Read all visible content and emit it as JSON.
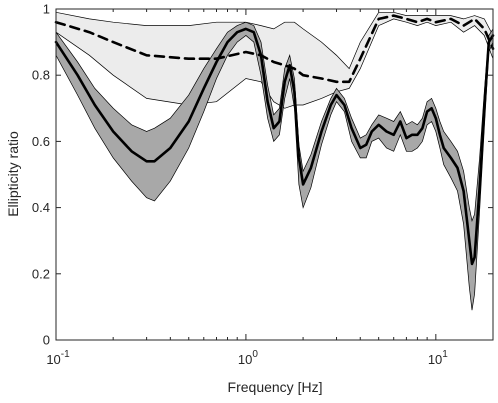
{
  "chart_data": {
    "type": "line",
    "xlabel": "Frequency [Hz]",
    "ylabel": "Ellipticity ratio",
    "xscale": "log",
    "xlim": [
      0.1,
      20
    ],
    "ylim": [
      0,
      1
    ],
    "grid": false,
    "x_ticks": [
      {
        "value": 0.1,
        "base": "10",
        "exp": "-1"
      },
      {
        "value": 1,
        "base": "10",
        "exp": "0"
      },
      {
        "value": 10,
        "base": "10",
        "exp": "1"
      }
    ],
    "y_ticks": [
      0,
      0.2,
      0.4,
      0.6,
      0.8,
      1
    ],
    "y_tick_labels": [
      "0",
      "0.2",
      "0.4",
      "0.6",
      "0.8",
      "1"
    ],
    "colors": {
      "light_band": "#ececec",
      "dark_band": "#a8a8a8",
      "line": "#000000",
      "axis": "#262626"
    },
    "series": [
      {
        "style": "dashed",
        "fill": "light",
        "x": [
          0.1,
          0.15,
          0.2,
          0.3,
          0.5,
          0.7,
          1.0,
          1.2,
          1.4,
          1.6,
          1.8,
          2.0,
          2.5,
          3.0,
          3.5,
          4.0,
          5.0,
          6.0,
          7.0,
          8.0,
          9.0,
          10.0,
          12.0,
          14.0,
          16.0,
          18.0,
          20.0
        ],
        "y": [
          0.96,
          0.93,
          0.9,
          0.86,
          0.85,
          0.85,
          0.87,
          0.86,
          0.84,
          0.83,
          0.82,
          0.8,
          0.79,
          0.78,
          0.78,
          0.85,
          0.97,
          0.98,
          0.97,
          0.96,
          0.97,
          0.96,
          0.97,
          0.95,
          0.97,
          0.94,
          0.88
        ],
        "upper": [
          0.99,
          0.97,
          0.96,
          0.95,
          0.95,
          0.96,
          0.96,
          0.95,
          0.94,
          0.96,
          0.96,
          0.94,
          0.9,
          0.86,
          0.82,
          0.9,
          0.99,
          0.99,
          0.98,
          0.98,
          0.98,
          0.98,
          0.98,
          0.97,
          0.98,
          0.97,
          0.92
        ],
        "lower": [
          0.93,
          0.86,
          0.8,
          0.73,
          0.71,
          0.72,
          0.79,
          0.78,
          0.72,
          0.7,
          0.71,
          0.71,
          0.73,
          0.75,
          0.76,
          0.82,
          0.95,
          0.97,
          0.96,
          0.95,
          0.96,
          0.95,
          0.96,
          0.93,
          0.95,
          0.92,
          0.85
        ]
      },
      {
        "style": "solid",
        "fill": "dark",
        "x": [
          0.1,
          0.13,
          0.16,
          0.2,
          0.25,
          0.3,
          0.33,
          0.4,
          0.5,
          0.6,
          0.7,
          0.8,
          0.9,
          1.0,
          1.1,
          1.2,
          1.3,
          1.4,
          1.5,
          1.6,
          1.7,
          1.8,
          1.9,
          2.0,
          2.2,
          2.5,
          2.8,
          3.0,
          3.3,
          3.6,
          4.0,
          4.3,
          4.6,
          5.0,
          5.5,
          6.0,
          6.5,
          7.0,
          7.5,
          8.0,
          8.5,
          9.0,
          9.5,
          10.0,
          10.5,
          11.0,
          12.0,
          13.0,
          14.0,
          15.0,
          15.5,
          16.0,
          17.0,
          18.0,
          19.0,
          20.0
        ],
        "y": [
          0.9,
          0.8,
          0.71,
          0.63,
          0.57,
          0.54,
          0.54,
          0.58,
          0.66,
          0.76,
          0.84,
          0.9,
          0.93,
          0.94,
          0.93,
          0.86,
          0.72,
          0.64,
          0.66,
          0.78,
          0.83,
          0.75,
          0.55,
          0.47,
          0.52,
          0.63,
          0.71,
          0.74,
          0.71,
          0.64,
          0.58,
          0.59,
          0.63,
          0.65,
          0.63,
          0.62,
          0.66,
          0.61,
          0.62,
          0.62,
          0.64,
          0.69,
          0.7,
          0.67,
          0.62,
          0.58,
          0.55,
          0.52,
          0.45,
          0.3,
          0.23,
          0.25,
          0.46,
          0.7,
          0.9,
          0.92
        ],
        "upper": [
          0.93,
          0.84,
          0.76,
          0.7,
          0.65,
          0.63,
          0.64,
          0.67,
          0.74,
          0.82,
          0.88,
          0.93,
          0.95,
          0.96,
          0.95,
          0.9,
          0.77,
          0.68,
          0.7,
          0.82,
          0.86,
          0.79,
          0.59,
          0.51,
          0.56,
          0.66,
          0.73,
          0.76,
          0.73,
          0.67,
          0.61,
          0.62,
          0.65,
          0.68,
          0.67,
          0.66,
          0.69,
          0.65,
          0.66,
          0.65,
          0.67,
          0.72,
          0.73,
          0.7,
          0.66,
          0.63,
          0.6,
          0.57,
          0.51,
          0.4,
          0.36,
          0.38,
          0.55,
          0.75,
          0.92,
          0.94
        ],
        "lower": [
          0.86,
          0.74,
          0.64,
          0.55,
          0.48,
          0.43,
          0.42,
          0.48,
          0.58,
          0.69,
          0.79,
          0.86,
          0.9,
          0.92,
          0.9,
          0.8,
          0.67,
          0.6,
          0.62,
          0.73,
          0.79,
          0.7,
          0.47,
          0.4,
          0.46,
          0.59,
          0.68,
          0.72,
          0.69,
          0.6,
          0.55,
          0.55,
          0.6,
          0.61,
          0.58,
          0.57,
          0.62,
          0.57,
          0.57,
          0.58,
          0.6,
          0.65,
          0.66,
          0.63,
          0.58,
          0.53,
          0.49,
          0.45,
          0.35,
          0.16,
          0.09,
          0.14,
          0.39,
          0.64,
          0.87,
          0.9
        ]
      }
    ]
  }
}
